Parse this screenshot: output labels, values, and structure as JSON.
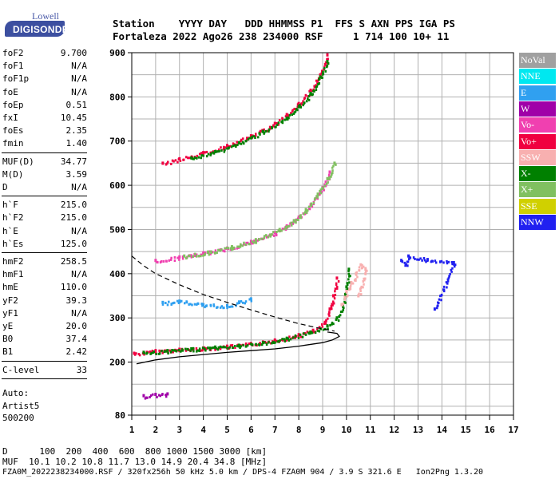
{
  "logo": {
    "top": "Lowell",
    "bottom": "DIGISONDE"
  },
  "header": {
    "line1": "Station    YYYY DAY   DDD HHMMSS P1  FFS S AXN PPS IGA PS",
    "line2": "Fortaleza 2022 Ago26 238 234000 RSF     1 714 100 10+ 11"
  },
  "params_group1": [
    {
      "label": "foF2",
      "value": "9.700"
    },
    {
      "label": "foF1",
      "value": "N/A"
    },
    {
      "label": "foF1p",
      "value": "N/A"
    },
    {
      "label": "foE",
      "value": "N/A"
    },
    {
      "label": "foEp",
      "value": "0.51"
    },
    {
      "label": "fxI",
      "value": "10.45"
    },
    {
      "label": "foEs",
      "value": "2.35"
    },
    {
      "label": "fmin",
      "value": "1.40"
    }
  ],
  "params_group2": [
    {
      "label": "MUF(D)",
      "value": "34.77"
    },
    {
      "label": "M(D)",
      "value": "3.59"
    },
    {
      "label": "D",
      "value": "N/A"
    }
  ],
  "params_group3": [
    {
      "label": "h`F",
      "value": "215.0"
    },
    {
      "label": "h`F2",
      "value": "215.0"
    },
    {
      "label": "h`E",
      "value": "N/A"
    },
    {
      "label": "h`Es",
      "value": "125.0"
    }
  ],
  "params_group4": [
    {
      "label": "hmF2",
      "value": "258.5"
    },
    {
      "label": "hmF1",
      "value": "N/A"
    },
    {
      "label": "hmE",
      "value": "110.0"
    },
    {
      "label": "yF2",
      "value": "39.3"
    },
    {
      "label": "yF1",
      "value": "N/A"
    },
    {
      "label": "yE",
      "value": "20.0"
    },
    {
      "label": "B0",
      "value": "37.4"
    },
    {
      "label": "B1",
      "value": "2.42"
    }
  ],
  "params_group5": [
    {
      "label": "C-level",
      "value": "33"
    }
  ],
  "autoscaling": {
    "line1": "Auto:",
    "line2": "Artist5",
    "line3": "500200"
  },
  "legend": [
    {
      "label": "NoVal",
      "color": "#a0a0a0"
    },
    {
      "label": "NNE",
      "color": "#00e8f0"
    },
    {
      "label": "E",
      "color": "#30a0f0"
    },
    {
      "label": "W",
      "color": "#a000a8"
    },
    {
      "label": "Vo-",
      "color": "#f040b0"
    },
    {
      "label": "Vo+",
      "color": "#f00040"
    },
    {
      "label": "SSW",
      "color": "#f8b0b0"
    },
    {
      "label": "X-",
      "color": "#008000"
    },
    {
      "label": "X+",
      "color": "#80c060"
    },
    {
      "label": "SSE",
      "color": "#d0d000"
    },
    {
      "label": "NNW",
      "color": "#2020f0"
    }
  ],
  "footer": {
    "line1": "D      100  200  400  600  800 1000 1500 3000 [km]",
    "line2": "MUF  10.1 10.2 10.8 11.7 13.0 14.9 20.4 34.8 [MHz]",
    "line3": "FZA0M_2022238234000.RSF / 320fx256h 50 kHz 5.0 km / DPS-4 FZA0M 904 / 3.9 S 321.6 E   Ion2Png 1.3.20"
  },
  "chart_data": {
    "type": "scatter",
    "xlim": [
      1,
      17
    ],
    "ylim": [
      80,
      900
    ],
    "x_ticks": [
      "1",
      "2",
      "3",
      "4",
      "5",
      "6",
      "7",
      "8",
      "9",
      "10",
      "11",
      "12",
      "13",
      "14",
      "15",
      "16",
      "17"
    ],
    "y_ticks": [
      "80",
      "200",
      "300",
      "400",
      "500",
      "600",
      "700",
      "800",
      "900"
    ],
    "grid": true,
    "traces": [
      {
        "name": "F2 O-mode 1st",
        "color": "#f00040",
        "points": [
          [
            1.1,
            220
          ],
          [
            1.5,
            222
          ],
          [
            2,
            226
          ],
          [
            3,
            229
          ],
          [
            4,
            232
          ],
          [
            5,
            236
          ],
          [
            6,
            242
          ],
          [
            7,
            250
          ],
          [
            8,
            262
          ],
          [
            8.6,
            272
          ],
          [
            9.1,
            290
          ],
          [
            9.3,
            320
          ],
          [
            9.45,
            350
          ],
          [
            9.6,
            390
          ]
        ]
      },
      {
        "name": "F2 X-mode 1st",
        "color": "#008000",
        "points": [
          [
            1.5,
            222
          ],
          [
            2.5,
            226
          ],
          [
            3.5,
            230
          ],
          [
            4.5,
            234
          ],
          [
            5.5,
            238
          ],
          [
            6.5,
            244
          ],
          [
            7.5,
            254
          ],
          [
            8.5,
            268
          ],
          [
            9.2,
            282
          ],
          [
            9.6,
            300
          ],
          [
            9.85,
            330
          ],
          [
            10.0,
            370
          ],
          [
            10.1,
            410
          ]
        ]
      },
      {
        "name": "F2 O-mode 2nd",
        "color": "#f040b0",
        "points": [
          [
            2,
            430
          ],
          [
            3,
            438
          ],
          [
            4,
            447
          ],
          [
            5,
            458
          ],
          [
            6,
            473
          ],
          [
            7,
            493
          ],
          [
            7.5,
            508
          ],
          [
            8,
            528
          ],
          [
            8.5,
            556
          ],
          [
            9,
            595
          ],
          [
            9.3,
            630
          ]
        ]
      },
      {
        "name": "F2 X-mode 2nd",
        "color": "#80c060",
        "points": [
          [
            3.2,
            440
          ],
          [
            4.2,
            449
          ],
          [
            5.2,
            461
          ],
          [
            6.2,
            477
          ],
          [
            7.2,
            500
          ],
          [
            7.8,
            520
          ],
          [
            8.3,
            545
          ],
          [
            8.8,
            580
          ],
          [
            9.2,
            615
          ],
          [
            9.5,
            650
          ]
        ]
      },
      {
        "name": "F2 O-mode 3rd",
        "color": "#f00040",
        "points": [
          [
            2.3,
            650
          ],
          [
            3,
            660
          ],
          [
            4,
            674
          ],
          [
            5,
            690
          ],
          [
            6,
            712
          ],
          [
            7,
            740
          ],
          [
            7.5,
            760
          ],
          [
            8,
            785
          ],
          [
            8.5,
            815
          ],
          [
            8.9,
            850
          ],
          [
            9.2,
            895
          ]
        ]
      },
      {
        "name": "F2 X-mode 3rd",
        "color": "#008000",
        "points": [
          [
            3.5,
            662
          ],
          [
            4.5,
            676
          ],
          [
            5.5,
            696
          ],
          [
            6.5,
            722
          ],
          [
            7.5,
            752
          ],
          [
            8,
            778
          ],
          [
            8.5,
            808
          ],
          [
            8.9,
            845
          ],
          [
            9.2,
            880
          ]
        ]
      },
      {
        "name": "Es oblique",
        "color": "#30a0f0",
        "points": [
          [
            2.3,
            335
          ],
          [
            3,
            338
          ],
          [
            4,
            330
          ],
          [
            5,
            328
          ],
          [
            5.5,
            336
          ],
          [
            6,
            343
          ]
        ]
      },
      {
        "name": "Es low",
        "color": "#a000a8",
        "points": [
          [
            1.5,
            124
          ],
          [
            2,
            127
          ],
          [
            2.5,
            128
          ]
        ]
      },
      {
        "name": "Spread F",
        "color": "#f8b0b0",
        "points": [
          [
            9.8,
            330
          ],
          [
            10,
            360
          ],
          [
            10.2,
            380
          ],
          [
            10.4,
            400
          ],
          [
            10.6,
            420
          ],
          [
            10.8,
            410
          ],
          [
            10.5,
            350
          ]
        ]
      },
      {
        "name": "Oblique echoes",
        "color": "#2020f0",
        "points": [
          [
            12.3,
            430
          ],
          [
            12.5,
            420
          ],
          [
            12.6,
            440
          ],
          [
            13.4,
            432
          ],
          [
            14.5,
            425
          ],
          [
            13.7,
            320
          ]
        ]
      }
    ],
    "profile_line": [
      [
        1.2,
        196
      ],
      [
        2,
        205
      ],
      [
        3,
        212
      ],
      [
        4,
        217
      ],
      [
        5,
        222
      ],
      [
        6,
        226
      ],
      [
        7,
        230
      ],
      [
        8,
        236
      ],
      [
        9,
        244
      ],
      [
        9.4,
        250
      ],
      [
        9.7,
        258
      ],
      [
        9.6,
        265
      ],
      [
        9.2,
        268
      ]
    ],
    "profile_dashed": [
      [
        1,
        440
      ],
      [
        1.5,
        418
      ],
      [
        2,
        400
      ],
      [
        3,
        375
      ],
      [
        4,
        353
      ],
      [
        5,
        335
      ],
      [
        6,
        318
      ],
      [
        7,
        302
      ],
      [
        8,
        287
      ],
      [
        9,
        275
      ],
      [
        9.5,
        270
      ]
    ]
  }
}
